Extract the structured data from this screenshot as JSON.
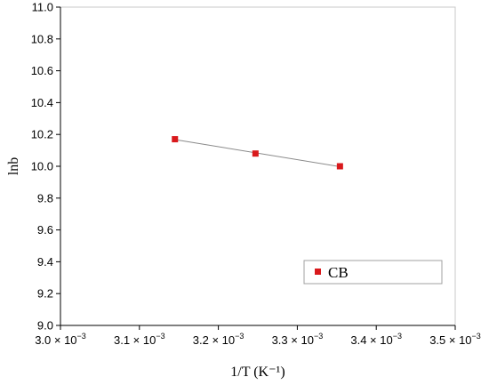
{
  "chart_data": {
    "type": "scatter",
    "xlabel": "1/T (K⁻¹)",
    "ylabel": "lnb",
    "xlim": [
      0.003,
      0.0035
    ],
    "ylim": [
      9.0,
      11.0
    ],
    "x_ticks": [
      0.003,
      0.0031,
      0.0032,
      0.0033,
      0.0034,
      0.0035
    ],
    "x_tick_labels": [
      {
        "mantissa": "3.0 × 10",
        "exp": "−3"
      },
      {
        "mantissa": "3.1 × 10",
        "exp": "−3"
      },
      {
        "mantissa": "3.2 × 10",
        "exp": "−3"
      },
      {
        "mantissa": "3.3 × 10",
        "exp": "−3"
      },
      {
        "mantissa": "3.4 × 10",
        "exp": "−3"
      },
      {
        "mantissa": "3.5 × 10",
        "exp": "−3"
      }
    ],
    "y_ticks": [
      9.0,
      9.2,
      9.4,
      9.6,
      9.8,
      10.0,
      10.2,
      10.4,
      10.6,
      10.8,
      11.0
    ],
    "y_tick_labels": [
      "9.0",
      "9.2",
      "9.4",
      "9.6",
      "9.8",
      "10.0",
      "10.2",
      "10.4",
      "10.6",
      "10.8",
      "11.0"
    ],
    "grid": false,
    "legend_position": "lower-right",
    "series": [
      {
        "name": "CB",
        "color": "#d9191c",
        "marker": "square",
        "fit_line": true,
        "fit_color": "#8a8a8a",
        "x": [
          0.003145,
          0.003247,
          0.003354
        ],
        "y": [
          10.17,
          10.08,
          10.0
        ]
      }
    ]
  }
}
